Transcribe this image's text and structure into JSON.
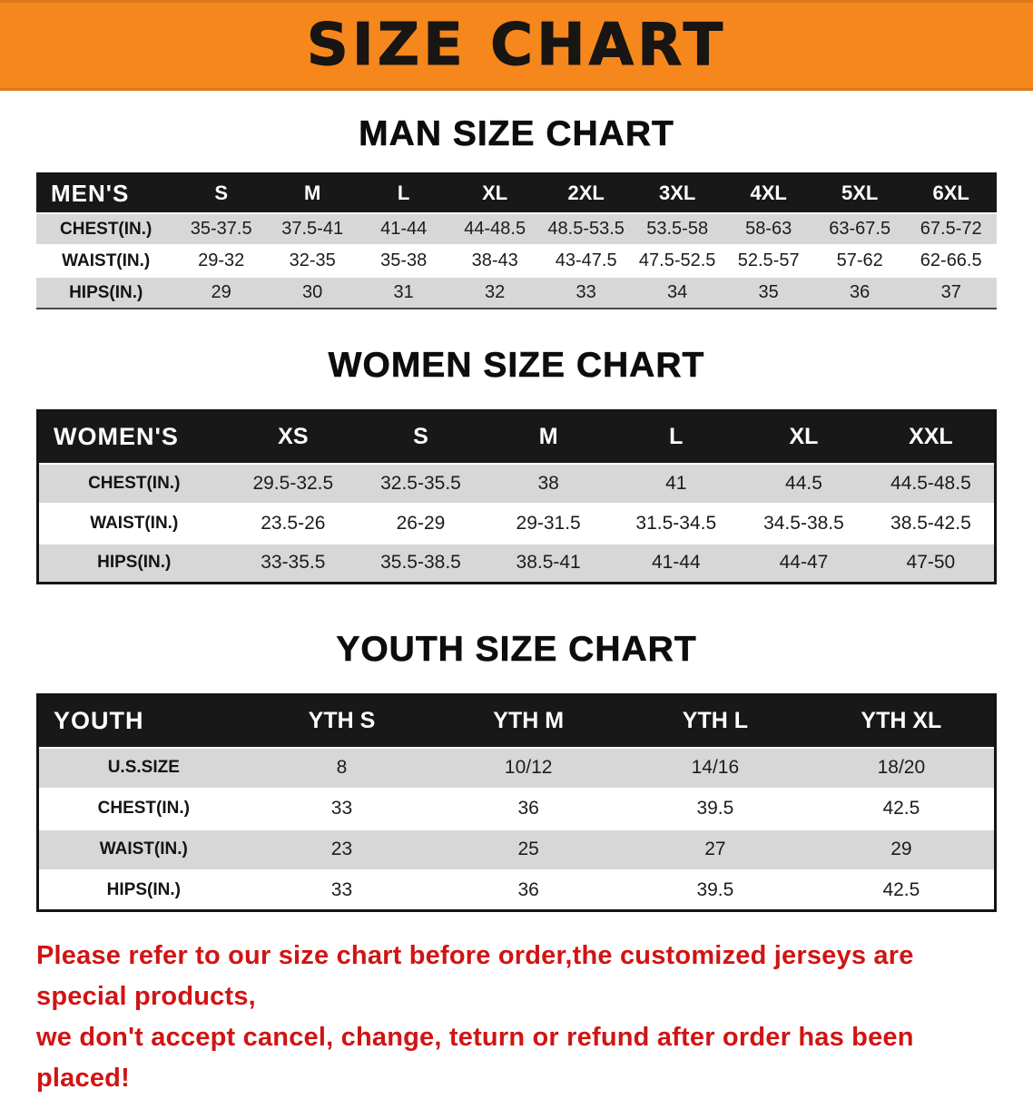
{
  "banner": {
    "title": "SIZE CHART"
  },
  "colors": {
    "banner_bg": "#f6871d",
    "table_header_bg": "#181818",
    "row_alt_bg": "#d7d7d7",
    "note_text": "#d01414"
  },
  "sections": [
    {
      "heading": "MAN SIZE CHART",
      "table": {
        "header": [
          "MEN'S",
          "S",
          "M",
          "L",
          "XL",
          "2XL",
          "3XL",
          "4XL",
          "5XL",
          "6XL"
        ],
        "rows": [
          [
            "CHEST(IN.)",
            "35-37.5",
            "37.5-41",
            "41-44",
            "44-48.5",
            "48.5-53.5",
            "53.5-58",
            "58-63",
            "63-67.5",
            "67.5-72"
          ],
          [
            "WAIST(IN.)",
            "29-32",
            "32-35",
            "35-38",
            "38-43",
            "43-47.5",
            "47.5-52.5",
            "52.5-57",
            "57-62",
            "62-66.5"
          ],
          [
            "HIPS(IN.)",
            "29",
            "30",
            "31",
            "32",
            "33",
            "34",
            "35",
            "36",
            "37"
          ]
        ]
      }
    },
    {
      "heading": "WOMEN SIZE CHART",
      "table": {
        "header": [
          "WOMEN'S",
          "XS",
          "S",
          "M",
          "L",
          "XL",
          "XXL"
        ],
        "rows": [
          [
            "CHEST(IN.)",
            "29.5-32.5",
            "32.5-35.5",
            "38",
            "41",
            "44.5",
            "44.5-48.5"
          ],
          [
            "WAIST(IN.)",
            "23.5-26",
            "26-29",
            "29-31.5",
            "31.5-34.5",
            "34.5-38.5",
            "38.5-42.5"
          ],
          [
            "HIPS(IN.)",
            "33-35.5",
            "35.5-38.5",
            "38.5-41",
            "41-44",
            "44-47",
            "47-50"
          ]
        ]
      }
    },
    {
      "heading": "YOUTH SIZE CHART",
      "table": {
        "header": [
          "YOUTH",
          "YTH S",
          "YTH M",
          "YTH L",
          "YTH XL"
        ],
        "rows": [
          [
            "U.S.SIZE",
            "8",
            "10/12",
            "14/16",
            "18/20"
          ],
          [
            "CHEST(IN.)",
            "33",
            "36",
            "39.5",
            "42.5"
          ],
          [
            "WAIST(IN.)",
            "23",
            "25",
            "27",
            "29"
          ],
          [
            "HIPS(IN.)",
            "33",
            "36",
            "39.5",
            "42.5"
          ]
        ]
      }
    }
  ],
  "footer_note": {
    "line1": "Please refer to our size chart before order,the customized jerseys are special products,",
    "line2": "we don't accept cancel, change, teturn or refund after order has been placed!"
  }
}
